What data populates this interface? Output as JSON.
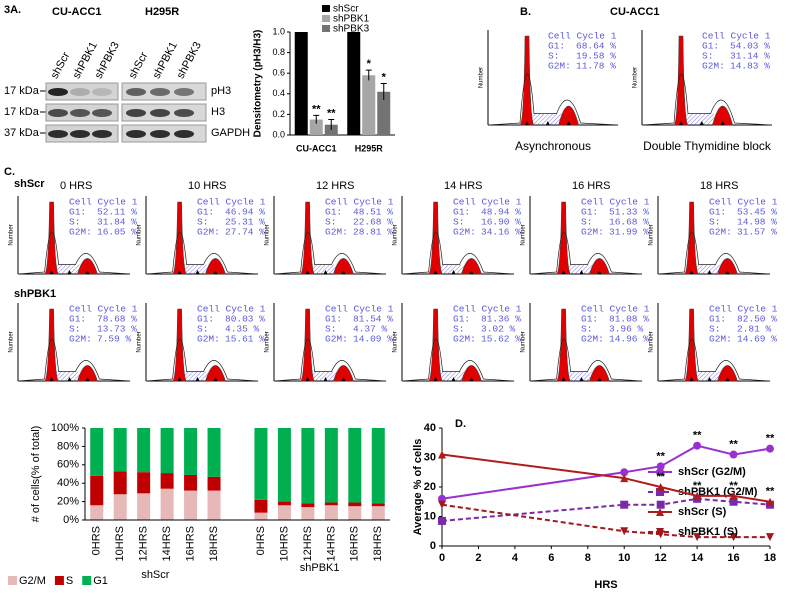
{
  "panel_a": {
    "label": "3A.",
    "groups": [
      "CU-ACC1",
      "H295R"
    ],
    "lanes": [
      "shScr",
      "shPBK1",
      "shPBK3",
      "shScr",
      "shPBK1",
      "shPBK3"
    ],
    "rows": [
      {
        "size": "17 kDa",
        "protein": "pH3"
      },
      {
        "size": "17 kDa",
        "protein": "H3"
      },
      {
        "size": "37 kDa",
        "protein": "GAPDH"
      }
    ]
  },
  "panel_b": {
    "label": "B.",
    "title": "CU-ACC1",
    "histograms": [
      {
        "title": "Cell Cycle 1",
        "stats": [
          [
            "G1:",
            "68.64 %"
          ],
          [
            "S:",
            "19.58 %"
          ],
          [
            "G2M:",
            "11.78 %"
          ]
        ],
        "caption": "Asynchronous"
      },
      {
        "title": "Cell Cycle 1",
        "stats": [
          [
            "G1:",
            "54.03 %"
          ],
          [
            "S:",
            "31.14 %"
          ],
          [
            "G2M:",
            "14.83 %"
          ]
        ],
        "caption": "Double Thymidine  block"
      }
    ]
  },
  "panel_c": {
    "label": "C.",
    "times": [
      "0 HRS",
      "10 HRS",
      "12 HRS",
      "14 HRS",
      "16 HRS",
      "18 HRS"
    ],
    "rows": [
      {
        "label": "shScr",
        "histograms": [
          {
            "title": "Cell Cycle 1",
            "stats": [
              [
                "G1:",
                "52.11 %"
              ],
              [
                "S:",
                "31.84 %"
              ],
              [
                "G2M:",
                "16.05 %"
              ]
            ]
          },
          {
            "title": "Cell Cycle 1",
            "stats": [
              [
                "G1:",
                "46.94 %"
              ],
              [
                "S:",
                "25.31 %"
              ],
              [
                "G2M:",
                "27.74 %"
              ]
            ]
          },
          {
            "title": "Cell Cycle 1",
            "stats": [
              [
                "G1:",
                "48.51 %"
              ],
              [
                "S:",
                "22.68 %"
              ],
              [
                "G2M:",
                "28.81 %"
              ]
            ]
          },
          {
            "title": "Cell Cycle 1",
            "stats": [
              [
                "G1:",
                "48.94 %"
              ],
              [
                "S:",
                "16.90 %"
              ],
              [
                "G2M:",
                "34.16 %"
              ]
            ]
          },
          {
            "title": "Cell Cycle 1",
            "stats": [
              [
                "G1:",
                "51.33 %"
              ],
              [
                "S:",
                "16.68 %"
              ],
              [
                "G2M:",
                "31.99 %"
              ]
            ]
          },
          {
            "title": "Cell Cycle 1",
            "stats": [
              [
                "G1:",
                "53.45 %"
              ],
              [
                "S:",
                "14.98 %"
              ],
              [
                "G2M:",
                "31.57 %"
              ]
            ]
          }
        ]
      },
      {
        "label": "shPBK1",
        "histograms": [
          {
            "title": "Cell Cycle 1",
            "stats": [
              [
                "G1:",
                "78.68 %"
              ],
              [
                "S:",
                "13.73 %"
              ],
              [
                "G2M:",
                "7.59 %"
              ]
            ]
          },
          {
            "title": "Cell Cycle 1",
            "stats": [
              [
                "G1:",
                "80.03 %"
              ],
              [
                "S:",
                "4.35 %"
              ],
              [
                "G2M:",
                "15.61 %"
              ]
            ]
          },
          {
            "title": "Cell Cycle 1",
            "stats": [
              [
                "G1:",
                "81.54 %"
              ],
              [
                "S:",
                "4.37 %"
              ],
              [
                "G2M:",
                "14.09 %"
              ]
            ]
          },
          {
            "title": "Cell Cycle 1",
            "stats": [
              [
                "G1:",
                "81.36 %"
              ],
              [
                "S:",
                "3.02 %"
              ],
              [
                "G2M:",
                "15.62 %"
              ]
            ]
          },
          {
            "title": "Cell Cycle 1",
            "stats": [
              [
                "G1:",
                "81.08 %"
              ],
              [
                "S:",
                "3.96 %"
              ],
              [
                "G2M:",
                "14.96 %"
              ]
            ]
          },
          {
            "title": "Cell Cycle 1",
            "stats": [
              [
                "G1:",
                "82.50 %"
              ],
              [
                "S:",
                "2.81 %"
              ],
              [
                "G2M:",
                "14.69 %"
              ]
            ]
          }
        ]
      }
    ]
  },
  "flow_y_label": "Number",
  "panel_d_label": "D.",
  "chart_data": [
    {
      "type": "grouped-bar",
      "y_label": "Densitometry (pH3/H3)",
      "categories": [
        "CU-ACC1",
        "H295R"
      ],
      "ylim": [
        0,
        1
      ],
      "yticks": [
        {
          "value": 0,
          "label": "0.0"
        },
        0.2,
        0.4,
        0.6,
        0.8,
        {
          "value": 1,
          "label": "1.0"
        }
      ],
      "series": [
        {
          "name": "shScr",
          "color": "#000000",
          "values": [
            1,
            1
          ]
        },
        {
          "name": "shPBK1",
          "color": "#a6a6a6",
          "values": [
            0.15,
            0.58
          ],
          "errors": [
            0.04,
            0.05
          ],
          "annotations": [
            "**",
            "*"
          ]
        },
        {
          "name": "shPBK3",
          "color": "#737373",
          "values": [
            0.1,
            0.42
          ],
          "errors": [
            0.05,
            0.08
          ],
          "annotations": [
            "**",
            "*"
          ]
        }
      ]
    },
    {
      "type": "stacked-bar",
      "y_label": "# of cells(% of total)",
      "categories": [
        "0HRS",
        "10HRS",
        "12HRS",
        "14HRS",
        "16HRS",
        "18HRS",
        "0HRS",
        "10HRS",
        "12HRS",
        "14HRS",
        "16HRS",
        "18HRS"
      ],
      "groups": [
        "shScr",
        "shPBK1"
      ],
      "ylim": [
        0,
        100
      ],
      "yticks": [
        {
          "value": 0,
          "label": "0%"
        },
        {
          "value": 20,
          "label": "20%"
        },
        {
          "value": 40,
          "label": "40%"
        },
        {
          "value": 60,
          "label": "60%"
        },
        {
          "value": 80,
          "label": "80%"
        },
        {
          "value": 100,
          "label": "100%"
        }
      ],
      "series": [
        {
          "name": "G2/M",
          "color": "#e6b8b7",
          "values": [
            16,
            28,
            29,
            34,
            32,
            32,
            8,
            16,
            14,
            16,
            15,
            15
          ]
        },
        {
          "name": "S",
          "color": "#c00000",
          "values": [
            32,
            25,
            23,
            17,
            17,
            15,
            14,
            4,
            4,
            3,
            4,
            3
          ]
        },
        {
          "name": "G1",
          "color": "#00b050",
          "values": [
            52,
            47,
            48,
            49,
            51,
            53,
            78,
            80,
            82,
            81,
            81,
            82
          ]
        }
      ]
    },
    {
      "type": "line",
      "x_label": "HRS",
      "y_label": "Average % of cells",
      "x": [
        0,
        10,
        12,
        14,
        16,
        18
      ],
      "xlim": [
        0,
        18
      ],
      "xticks": [
        0,
        2,
        4,
        6,
        8,
        10,
        12,
        14,
        16,
        18
      ],
      "ylim": [
        0,
        40
      ],
      "yticks": [
        0,
        10,
        20,
        30,
        40
      ],
      "series": [
        {
          "name": "shScr (G2/M)",
          "color": "#9b30d0",
          "marker": "circle",
          "dash": false,
          "values": [
            16,
            25,
            27,
            34,
            31,
            33
          ],
          "annotations": [
            null,
            null,
            "**",
            "**",
            "**",
            "**"
          ]
        },
        {
          "name": "shPBK1 (G2/M)",
          "color": "#7a2aa8",
          "marker": "square",
          "dash": true,
          "values": [
            8.5,
            14,
            14,
            16,
            15,
            14
          ]
        },
        {
          "name": "shScr (S)",
          "color": "#b01c1c",
          "marker": "triangle-up",
          "dash": false,
          "values": [
            31,
            23,
            20,
            17,
            17,
            15
          ],
          "annotations": [
            null,
            null,
            "**",
            "**",
            "**",
            "**"
          ]
        },
        {
          "name": "shPBK1 (S)",
          "color": "#a0181e",
          "marker": "triangle-down",
          "dash": true,
          "values": [
            14,
            5,
            4,
            3,
            3,
            3
          ]
        }
      ]
    }
  ]
}
